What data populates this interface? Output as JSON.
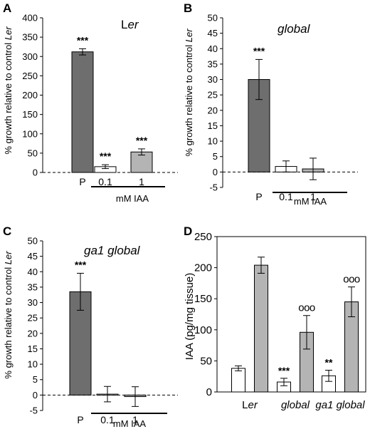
{
  "chart_data": [
    {
      "type": "bar",
      "panel": "A",
      "title_main": "L",
      "title_italic": "er",
      "ylabel_prefix": "% growth relative to control ",
      "ylabel_italic": "Ler",
      "ylim": [
        0,
        400
      ],
      "yticks": [
        "0",
        "50",
        "100",
        "150",
        "200",
        "250",
        "300",
        "350",
        "400"
      ],
      "categories": [
        "P",
        "0.1",
        "1"
      ],
      "values": [
        312,
        15,
        53
      ],
      "errors": [
        8,
        5,
        8
      ],
      "colors": [
        "#6e6e6e",
        "#ffffff",
        "#b4b4b4"
      ],
      "significance": [
        "***",
        "***",
        "***"
      ],
      "xgroup_label": "mM IAA",
      "grid": false
    },
    {
      "type": "bar",
      "panel": "B",
      "title_main": "",
      "title_italic": "global",
      "ylabel_prefix": "% growth relative to control ",
      "ylabel_italic": "Ler",
      "ylim": [
        -5,
        50
      ],
      "yticks": [
        "-5",
        "0",
        "5",
        "10",
        "15",
        "20",
        "25",
        "30",
        "35",
        "40",
        "45",
        "50"
      ],
      "categories": [
        "P",
        "0.1",
        "1"
      ],
      "values": [
        30,
        1.8,
        1
      ],
      "errors": [
        6.5,
        1.8,
        3.5
      ],
      "colors": [
        "#6e6e6e",
        "#ffffff",
        "#b4b4b4"
      ],
      "significance": [
        "***",
        "",
        ""
      ],
      "xgroup_label": "mM IAA",
      "grid": false
    },
    {
      "type": "bar",
      "panel": "C",
      "title_main": "",
      "title_italic": "ga1 global",
      "ylabel_prefix": "% growth relative to control ",
      "ylabel_italic": "Ler",
      "ylim": [
        -5,
        50
      ],
      "yticks": [
        "-5",
        "0",
        "5",
        "10",
        "15",
        "20",
        "25",
        "30",
        "35",
        "40",
        "45",
        "50"
      ],
      "categories": [
        "P",
        "0.1",
        "1"
      ],
      "values": [
        33.5,
        0.3,
        -0.5
      ],
      "errors": [
        6,
        2.5,
        3.2
      ],
      "colors": [
        "#6e6e6e",
        "#ffffff",
        "#b4b4b4"
      ],
      "significance": [
        "***",
        "",
        ""
      ],
      "xgroup_label": "mM IAA",
      "grid": false
    },
    {
      "type": "bar",
      "panel": "D",
      "ylabel": "IAA (pg/mg tissue)",
      "ylim": [
        0,
        250
      ],
      "yticks": [
        "0",
        "50",
        "100",
        "150",
        "200",
        "250"
      ],
      "categories": [
        "Ler",
        "global",
        "ga1 global"
      ],
      "series": [
        {
          "values": [
            38,
            16,
            26
          ],
          "errors": [
            4,
            6,
            9
          ],
          "color": "#ffffff",
          "significance": [
            "",
            "***",
            "**"
          ]
        },
        {
          "values": [
            204,
            96,
            145
          ],
          "errors": [
            13,
            27,
            24
          ],
          "color": "#b4b4b4",
          "significance": [
            "",
            "ooo",
            "ooo"
          ]
        }
      ],
      "grid": false
    }
  ]
}
